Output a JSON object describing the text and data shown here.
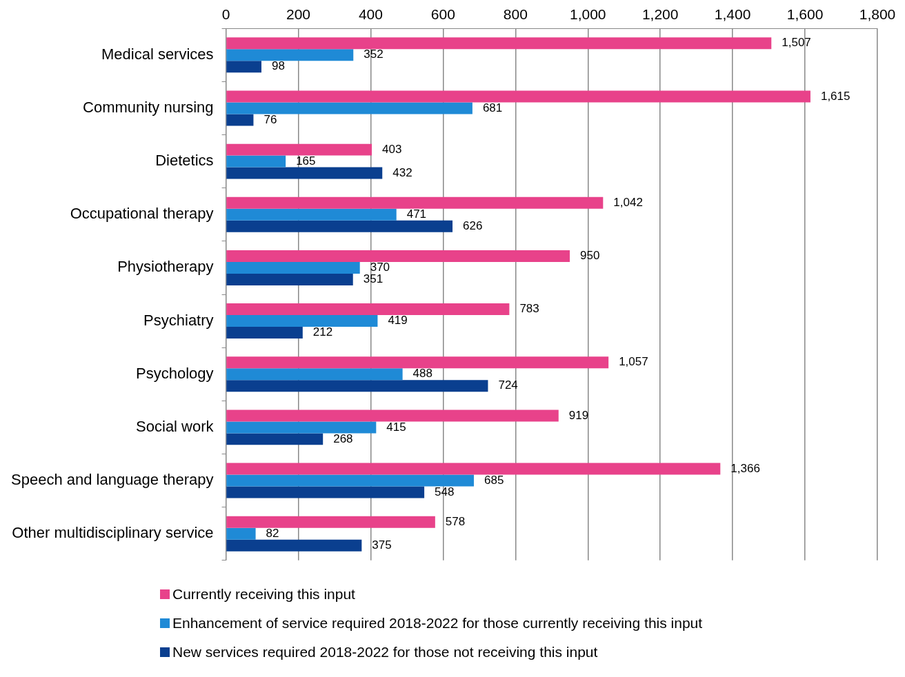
{
  "chart_data": {
    "type": "bar",
    "orientation": "horizontal",
    "categories": [
      "Medical services",
      "Community nursing",
      "Dietetics",
      "Occupational therapy",
      "Physiotherapy",
      "Psychiatry",
      "Psychology",
      "Social work",
      "Speech and language therapy",
      "Other multidisciplinary service"
    ],
    "series": [
      {
        "name": "Currently receiving this input",
        "color": "#e8428a",
        "values": [
          1507,
          1615,
          403,
          1042,
          950,
          783,
          1057,
          919,
          1366,
          578
        ],
        "value_labels": [
          "1,507",
          "1,615",
          "403",
          "1,042",
          "950",
          "783",
          "1,057",
          "919",
          "1,366",
          "578"
        ]
      },
      {
        "name": "Enhancement of service required 2018-2022 for those currently receiving this input",
        "color": "#1f8ad6",
        "values": [
          352,
          681,
          165,
          471,
          370,
          419,
          488,
          415,
          685,
          82
        ],
        "value_labels": [
          "352",
          "681",
          "165",
          "471",
          "370",
          "419",
          "488",
          "415",
          "685",
          "82"
        ]
      },
      {
        "name": "New services required 2018-2022 for those not receiving this input",
        "color": "#0a3f8f",
        "values": [
          98,
          76,
          432,
          626,
          351,
          212,
          724,
          268,
          548,
          375
        ],
        "value_labels": [
          "98",
          "76",
          "432",
          "626",
          "351",
          "212",
          "724",
          "268",
          "548",
          "375"
        ]
      }
    ],
    "xlim": [
      0,
      1800
    ],
    "xticks": [
      0,
      200,
      400,
      600,
      800,
      {
        "value": 1000,
        "label": "1,000"
      },
      {
        "value": 1200,
        "label": "1,200"
      },
      {
        "value": 1400,
        "label": "1,400"
      },
      {
        "value": 1600,
        "label": "1,600"
      },
      {
        "value": 1800,
        "label": "1,800"
      }
    ],
    "grid": "x",
    "legend": "bottom"
  }
}
